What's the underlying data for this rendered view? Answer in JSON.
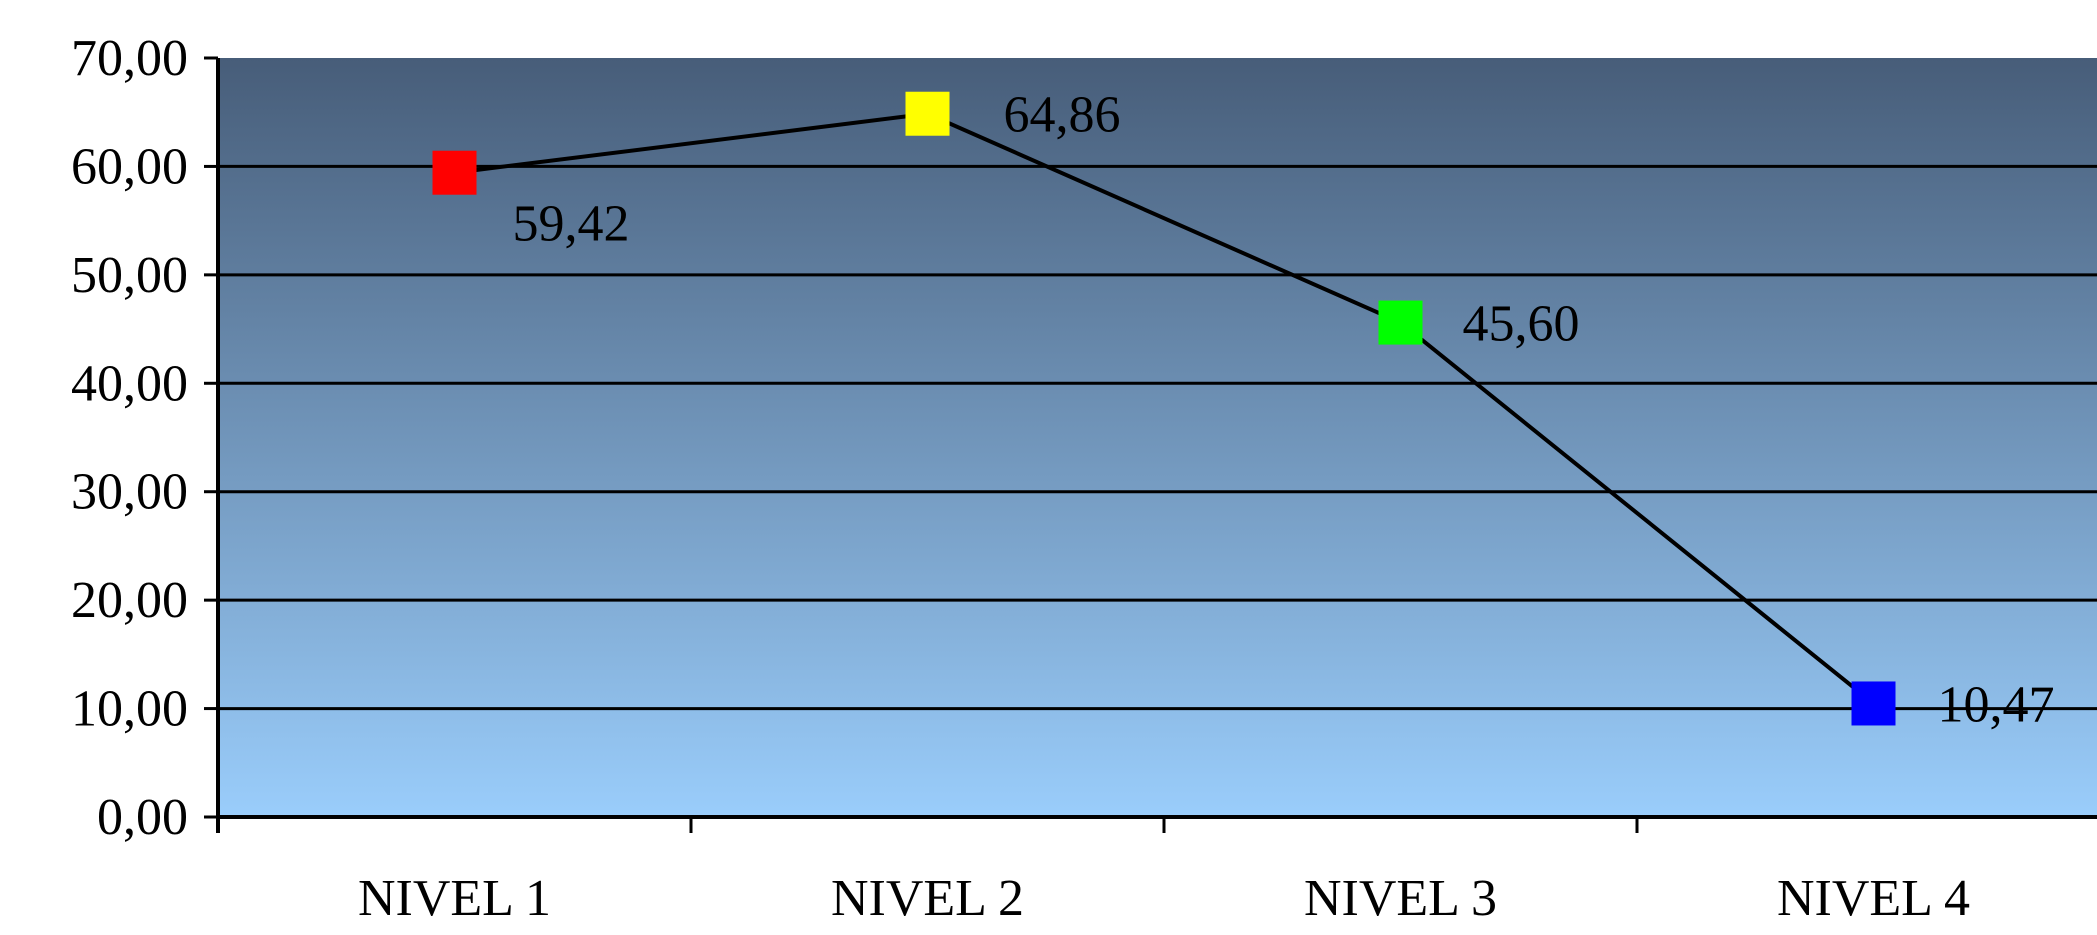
{
  "chart_data": {
    "type": "line",
    "title": "",
    "xlabel": "",
    "ylabel": "",
    "categories": [
      "NIVEL 1",
      "NIVEL 2",
      "NIVEL 3",
      "NIVEL 4"
    ],
    "series": [
      {
        "values": [
          59.42,
          64.86,
          45.6,
          10.47
        ],
        "labels": [
          "59,42",
          "64,86",
          "45,60",
          "10,47"
        ],
        "marker_colors": [
          "#ff0000",
          "#ffff00",
          "#00ff00",
          "#0000ff"
        ],
        "line_color": "#000000"
      }
    ],
    "ylim": [
      0,
      70
    ],
    "yticks": [
      0,
      10,
      20,
      30,
      40,
      50,
      60,
      70
    ],
    "ytick_labels": [
      "0,00",
      "10,00",
      "20,00",
      "30,00",
      "40,00",
      "50,00",
      "60,00",
      "70,00"
    ],
    "grid": true,
    "legend": "none",
    "plot_background": {
      "top_color": "#475d79",
      "bottom_color": "#9acdfb"
    }
  }
}
